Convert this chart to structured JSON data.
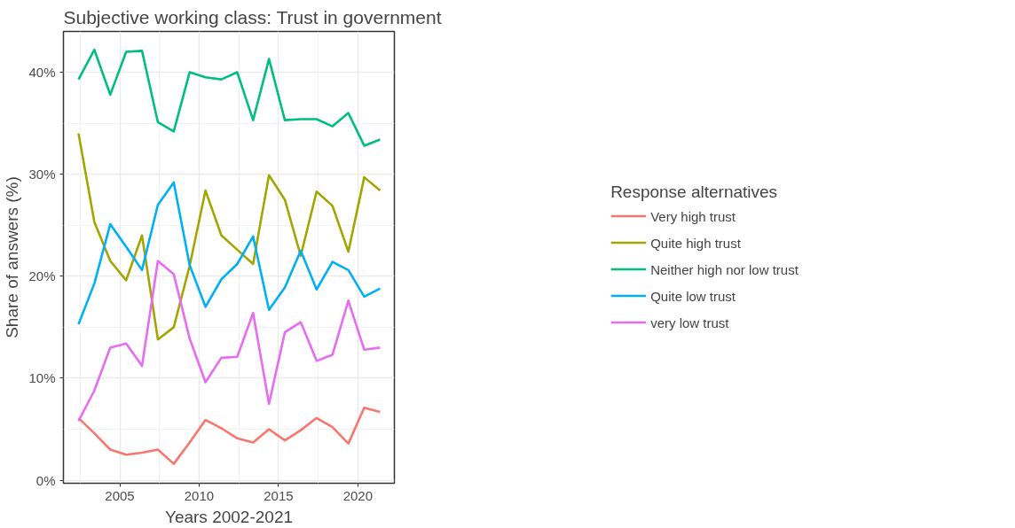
{
  "chart_data": {
    "type": "line",
    "title": "Subjective working class: Trust in government",
    "xlabel": "Years 2002-2021",
    "ylabel": "Share of answers (%)",
    "legend_title": "Response alternatives",
    "x": [
      2002.4,
      2003.4,
      2004.4,
      2005.4,
      2006.4,
      2007.4,
      2008.4,
      2009.4,
      2010.4,
      2011.4,
      2012.4,
      2013.4,
      2014.4,
      2015.4,
      2016.4,
      2017.4,
      2018.4,
      2019.4,
      2020.4,
      2021.4
    ],
    "series": [
      {
        "name": "Very high trust",
        "color": "#f8766d",
        "values": [
          6.1,
          4.6,
          3.0,
          2.5,
          2.7,
          3.0,
          1.6,
          3.7,
          5.9,
          5.1,
          4.1,
          3.7,
          5.0,
          3.9,
          4.9,
          6.1,
          5.2,
          3.6,
          7.1,
          6.7
        ]
      },
      {
        "name": "Quite high trust",
        "color": "#a3a500",
        "values": [
          34.0,
          25.3,
          21.5,
          19.6,
          24.0,
          13.8,
          15.0,
          21.0,
          28.4,
          24.0,
          22.6,
          21.2,
          29.9,
          27.5,
          22.0,
          28.3,
          26.9,
          22.4,
          29.7,
          28.4
        ]
      },
      {
        "name": "Neither high nor low trust",
        "color": "#00bf7d",
        "values": [
          39.3,
          42.2,
          37.8,
          42.0,
          42.1,
          35.1,
          34.2,
          40.0,
          39.5,
          39.3,
          40.0,
          35.3,
          41.3,
          35.3,
          35.4,
          35.4,
          34.7,
          36.0,
          32.8,
          33.4
        ]
      },
      {
        "name": "Quite low trust",
        "color": "#00b0f6",
        "values": [
          15.3,
          19.3,
          25.1,
          22.9,
          20.6,
          27.0,
          29.2,
          21.1,
          17.0,
          19.7,
          21.2,
          23.9,
          16.7,
          18.9,
          22.5,
          18.7,
          21.4,
          20.6,
          18.0,
          18.8
        ]
      },
      {
        "name": "very low trust",
        "color": "#e76bf3",
        "values": [
          5.8,
          8.8,
          13.0,
          13.4,
          11.2,
          21.5,
          20.2,
          13.9,
          9.6,
          12.0,
          12.1,
          16.4,
          7.5,
          14.5,
          15.5,
          11.7,
          12.3,
          17.6,
          12.8,
          13.0
        ]
      }
    ],
    "xlim": [
      2001.45,
      2022.3
    ],
    "ylim": [
      -0.3,
      44
    ],
    "xticks": [
      2005,
      2010,
      2015,
      2020
    ],
    "yticks": [
      {
        "value": 0,
        "label": "0%"
      },
      {
        "value": 10,
        "label": "10%"
      },
      {
        "value": 20,
        "label": "20%"
      },
      {
        "value": 30,
        "label": "30%"
      },
      {
        "value": 40,
        "label": "40%"
      }
    ],
    "grid": true,
    "legend": "right",
    "marker": "none",
    "line_style": "solid"
  }
}
